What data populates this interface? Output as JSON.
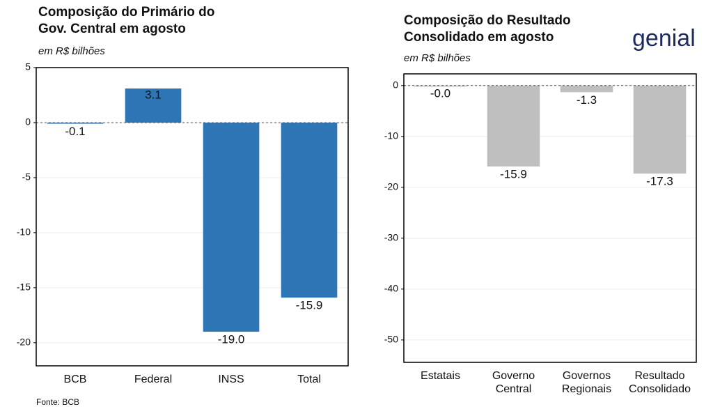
{
  "logo": "genial",
  "chart_data": [
    {
      "type": "bar",
      "title": [
        "Composição do Primário do",
        "Gov. Central em agosto"
      ],
      "subtitle": "em R$ bilhões",
      "categories": [
        [
          "BCB"
        ],
        [
          "Federal"
        ],
        [
          "INSS"
        ],
        [
          "Total"
        ]
      ],
      "values": [
        -0.1,
        3.1,
        -19.0,
        -15.9
      ],
      "value_labels": [
        "-0.1",
        "3.1",
        "-19.0",
        "-15.9"
      ],
      "color": "#2e75b6",
      "ylim": [
        -22.1,
        5
      ],
      "yticks": [
        5,
        0,
        -5,
        -10,
        -15,
        -20
      ],
      "grid": true,
      "source": "Fonte: BCB"
    },
    {
      "type": "bar",
      "title": [
        "Composição do Resultado",
        "Consolidado em agosto"
      ],
      "subtitle": "em R$ bilhões",
      "categories": [
        [
          "Estatais"
        ],
        [
          "Governo",
          "Central"
        ],
        [
          "Governos",
          "Regionais"
        ],
        [
          "Resultado",
          "Consolidado"
        ]
      ],
      "values": [
        -0.02,
        -15.9,
        -1.3,
        -17.3
      ],
      "value_labels": [
        "-0.0",
        "-15.9",
        "-1.3",
        "-17.3"
      ],
      "color": "#bfbfbf",
      "ylim": [
        -54.4,
        2.3
      ],
      "yticks": [
        0,
        -10,
        -20,
        -30,
        -40,
        -50
      ],
      "grid": true
    }
  ]
}
